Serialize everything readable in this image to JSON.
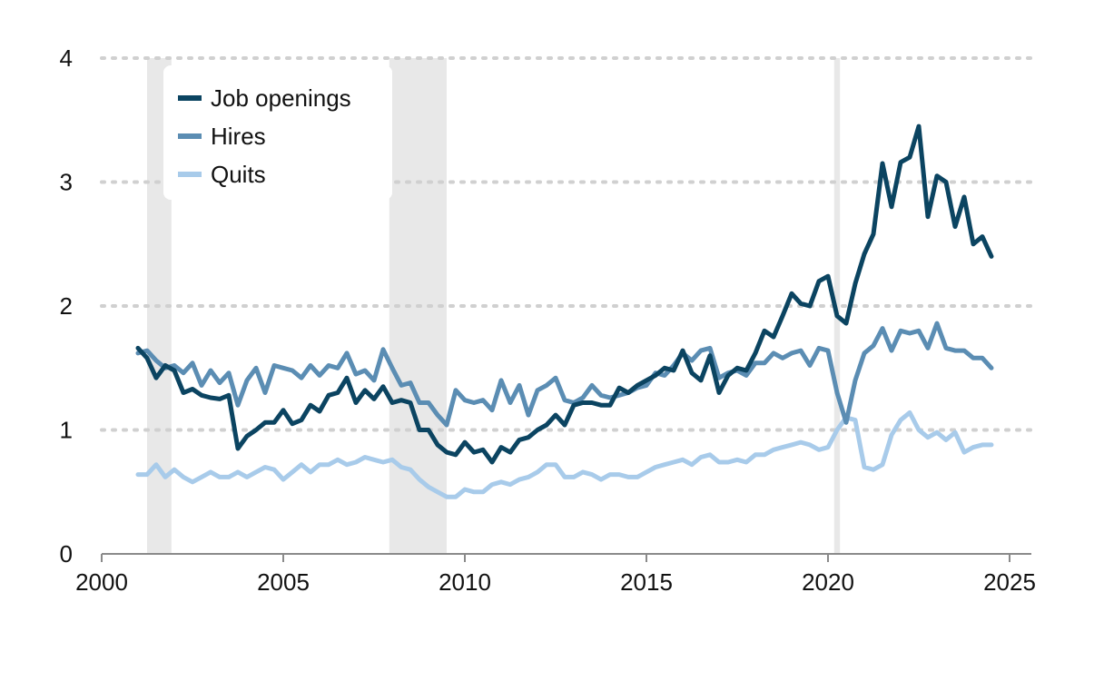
{
  "chart_data": {
    "type": "line",
    "title": "",
    "xlabel": "",
    "ylabel": "",
    "xlim": [
      2000,
      2025.6
    ],
    "ylim": [
      0,
      4
    ],
    "x_ticks": [
      "2000",
      "2005",
      "2010",
      "2015",
      "2020",
      "2025"
    ],
    "y_ticks": [
      "0",
      "1",
      "2",
      "3",
      "4"
    ],
    "grid": "horizontal dotted",
    "legend_position": "top-left",
    "recessions": [
      {
        "start": 2001.25,
        "end": 2001.92
      },
      {
        "start": 2007.92,
        "end": 2009.5
      },
      {
        "start": 2020.17,
        "end": 2020.33
      }
    ],
    "series": [
      {
        "name": "Job openings",
        "color": "#0b4461",
        "points": [
          [
            2001.0,
            1.66
          ],
          [
            2001.25,
            1.58
          ],
          [
            2001.5,
            1.42
          ],
          [
            2001.75,
            1.52
          ],
          [
            2002.0,
            1.48
          ],
          [
            2002.25,
            1.3
          ],
          [
            2002.5,
            1.33
          ],
          [
            2002.75,
            1.28
          ],
          [
            2003.0,
            1.26
          ],
          [
            2003.25,
            1.25
          ],
          [
            2003.5,
            1.28
          ],
          [
            2003.75,
            0.85
          ],
          [
            2004.0,
            0.95
          ],
          [
            2004.25,
            1.0
          ],
          [
            2004.5,
            1.06
          ],
          [
            2004.75,
            1.06
          ],
          [
            2005.0,
            1.16
          ],
          [
            2005.25,
            1.05
          ],
          [
            2005.5,
            1.08
          ],
          [
            2005.75,
            1.2
          ],
          [
            2006.0,
            1.15
          ],
          [
            2006.25,
            1.28
          ],
          [
            2006.5,
            1.3
          ],
          [
            2006.75,
            1.42
          ],
          [
            2007.0,
            1.22
          ],
          [
            2007.25,
            1.32
          ],
          [
            2007.5,
            1.25
          ],
          [
            2007.75,
            1.35
          ],
          [
            2008.0,
            1.22
          ],
          [
            2008.25,
            1.24
          ],
          [
            2008.5,
            1.22
          ],
          [
            2008.75,
            1.0
          ],
          [
            2009.0,
            1.0
          ],
          [
            2009.25,
            0.88
          ],
          [
            2009.5,
            0.82
          ],
          [
            2009.75,
            0.8
          ],
          [
            2010.0,
            0.9
          ],
          [
            2010.25,
            0.82
          ],
          [
            2010.5,
            0.84
          ],
          [
            2010.75,
            0.74
          ],
          [
            2011.0,
            0.86
          ],
          [
            2011.25,
            0.82
          ],
          [
            2011.5,
            0.92
          ],
          [
            2011.75,
            0.94
          ],
          [
            2012.0,
            1.0
          ],
          [
            2012.25,
            1.04
          ],
          [
            2012.5,
            1.12
          ],
          [
            2012.75,
            1.04
          ],
          [
            2013.0,
            1.2
          ],
          [
            2013.25,
            1.22
          ],
          [
            2013.5,
            1.22
          ],
          [
            2013.75,
            1.2
          ],
          [
            2014.0,
            1.2
          ],
          [
            2014.25,
            1.34
          ],
          [
            2014.5,
            1.3
          ],
          [
            2014.75,
            1.36
          ],
          [
            2015.0,
            1.4
          ],
          [
            2015.25,
            1.44
          ],
          [
            2015.5,
            1.5
          ],
          [
            2015.75,
            1.48
          ],
          [
            2016.0,
            1.64
          ],
          [
            2016.25,
            1.46
          ],
          [
            2016.5,
            1.4
          ],
          [
            2016.75,
            1.6
          ],
          [
            2017.0,
            1.3
          ],
          [
            2017.25,
            1.44
          ],
          [
            2017.5,
            1.5
          ],
          [
            2017.75,
            1.48
          ],
          [
            2018.0,
            1.62
          ],
          [
            2018.25,
            1.8
          ],
          [
            2018.5,
            1.75
          ],
          [
            2018.75,
            1.92
          ],
          [
            2019.0,
            2.1
          ],
          [
            2019.25,
            2.02
          ],
          [
            2019.5,
            2.0
          ],
          [
            2019.75,
            2.2
          ],
          [
            2020.0,
            2.24
          ],
          [
            2020.25,
            1.92
          ],
          [
            2020.5,
            1.86
          ],
          [
            2020.75,
            2.18
          ],
          [
            2021.0,
            2.42
          ],
          [
            2021.25,
            2.58
          ],
          [
            2021.5,
            3.15
          ],
          [
            2021.75,
            2.8
          ],
          [
            2022.0,
            3.16
          ],
          [
            2022.25,
            3.2
          ],
          [
            2022.5,
            3.45
          ],
          [
            2022.75,
            2.72
          ],
          [
            2023.0,
            3.05
          ],
          [
            2023.25,
            3.0
          ],
          [
            2023.5,
            2.64
          ],
          [
            2023.75,
            2.88
          ],
          [
            2024.0,
            2.5
          ],
          [
            2024.25,
            2.56
          ],
          [
            2024.5,
            2.4
          ]
        ]
      },
      {
        "name": "Hires",
        "color": "#5b8db3",
        "points": [
          [
            2001.0,
            1.62
          ],
          [
            2001.25,
            1.64
          ],
          [
            2001.5,
            1.56
          ],
          [
            2001.75,
            1.5
          ],
          [
            2002.0,
            1.52
          ],
          [
            2002.25,
            1.46
          ],
          [
            2002.5,
            1.54
          ],
          [
            2002.75,
            1.36
          ],
          [
            2003.0,
            1.48
          ],
          [
            2003.25,
            1.38
          ],
          [
            2003.5,
            1.46
          ],
          [
            2003.75,
            1.2
          ],
          [
            2004.0,
            1.4
          ],
          [
            2004.25,
            1.5
          ],
          [
            2004.5,
            1.3
          ],
          [
            2004.75,
            1.52
          ],
          [
            2005.0,
            1.5
          ],
          [
            2005.25,
            1.48
          ],
          [
            2005.5,
            1.42
          ],
          [
            2005.75,
            1.52
          ],
          [
            2006.0,
            1.44
          ],
          [
            2006.25,
            1.52
          ],
          [
            2006.5,
            1.5
          ],
          [
            2006.75,
            1.62
          ],
          [
            2007.0,
            1.45
          ],
          [
            2007.25,
            1.48
          ],
          [
            2007.5,
            1.4
          ],
          [
            2007.75,
            1.65
          ],
          [
            2008.0,
            1.5
          ],
          [
            2008.25,
            1.36
          ],
          [
            2008.5,
            1.38
          ],
          [
            2008.75,
            1.22
          ],
          [
            2009.0,
            1.22
          ],
          [
            2009.25,
            1.12
          ],
          [
            2009.5,
            1.04
          ],
          [
            2009.75,
            1.32
          ],
          [
            2010.0,
            1.24
          ],
          [
            2010.25,
            1.22
          ],
          [
            2010.5,
            1.24
          ],
          [
            2010.75,
            1.16
          ],
          [
            2011.0,
            1.4
          ],
          [
            2011.25,
            1.22
          ],
          [
            2011.5,
            1.36
          ],
          [
            2011.75,
            1.12
          ],
          [
            2012.0,
            1.32
          ],
          [
            2012.25,
            1.36
          ],
          [
            2012.5,
            1.42
          ],
          [
            2012.75,
            1.24
          ],
          [
            2013.0,
            1.22
          ],
          [
            2013.25,
            1.26
          ],
          [
            2013.5,
            1.36
          ],
          [
            2013.75,
            1.28
          ],
          [
            2014.0,
            1.26
          ],
          [
            2014.25,
            1.28
          ],
          [
            2014.5,
            1.3
          ],
          [
            2014.75,
            1.34
          ],
          [
            2015.0,
            1.36
          ],
          [
            2015.25,
            1.46
          ],
          [
            2015.5,
            1.44
          ],
          [
            2015.75,
            1.52
          ],
          [
            2016.0,
            1.62
          ],
          [
            2016.25,
            1.56
          ],
          [
            2016.5,
            1.64
          ],
          [
            2016.75,
            1.66
          ],
          [
            2017.0,
            1.42
          ],
          [
            2017.25,
            1.46
          ],
          [
            2017.5,
            1.48
          ],
          [
            2017.75,
            1.44
          ],
          [
            2018.0,
            1.54
          ],
          [
            2018.25,
            1.54
          ],
          [
            2018.5,
            1.62
          ],
          [
            2018.75,
            1.58
          ],
          [
            2019.0,
            1.62
          ],
          [
            2019.25,
            1.64
          ],
          [
            2019.5,
            1.52
          ],
          [
            2019.75,
            1.66
          ],
          [
            2020.0,
            1.64
          ],
          [
            2020.25,
            1.3
          ],
          [
            2020.5,
            1.06
          ],
          [
            2020.75,
            1.4
          ],
          [
            2021.0,
            1.62
          ],
          [
            2021.25,
            1.68
          ],
          [
            2021.5,
            1.82
          ],
          [
            2021.75,
            1.64
          ],
          [
            2022.0,
            1.8
          ],
          [
            2022.25,
            1.78
          ],
          [
            2022.5,
            1.8
          ],
          [
            2022.75,
            1.66
          ],
          [
            2023.0,
            1.86
          ],
          [
            2023.25,
            1.66
          ],
          [
            2023.5,
            1.64
          ],
          [
            2023.75,
            1.64
          ],
          [
            2024.0,
            1.58
          ],
          [
            2024.25,
            1.58
          ],
          [
            2024.5,
            1.5
          ]
        ]
      },
      {
        "name": "Quits",
        "color": "#a8cbea",
        "points": [
          [
            2001.0,
            0.64
          ],
          [
            2001.25,
            0.64
          ],
          [
            2001.5,
            0.72
          ],
          [
            2001.75,
            0.62
          ],
          [
            2002.0,
            0.68
          ],
          [
            2002.25,
            0.62
          ],
          [
            2002.5,
            0.58
          ],
          [
            2002.75,
            0.62
          ],
          [
            2003.0,
            0.66
          ],
          [
            2003.25,
            0.62
          ],
          [
            2003.5,
            0.62
          ],
          [
            2003.75,
            0.66
          ],
          [
            2004.0,
            0.62
          ],
          [
            2004.25,
            0.66
          ],
          [
            2004.5,
            0.7
          ],
          [
            2004.75,
            0.68
          ],
          [
            2005.0,
            0.6
          ],
          [
            2005.25,
            0.66
          ],
          [
            2005.5,
            0.72
          ],
          [
            2005.75,
            0.66
          ],
          [
            2006.0,
            0.72
          ],
          [
            2006.25,
            0.72
          ],
          [
            2006.5,
            0.76
          ],
          [
            2006.75,
            0.72
          ],
          [
            2007.0,
            0.74
          ],
          [
            2007.25,
            0.78
          ],
          [
            2007.5,
            0.76
          ],
          [
            2007.75,
            0.74
          ],
          [
            2008.0,
            0.76
          ],
          [
            2008.25,
            0.7
          ],
          [
            2008.5,
            0.68
          ],
          [
            2008.75,
            0.6
          ],
          [
            2009.0,
            0.54
          ],
          [
            2009.25,
            0.5
          ],
          [
            2009.5,
            0.46
          ],
          [
            2009.75,
            0.46
          ],
          [
            2010.0,
            0.52
          ],
          [
            2010.25,
            0.5
          ],
          [
            2010.5,
            0.5
          ],
          [
            2010.75,
            0.56
          ],
          [
            2011.0,
            0.58
          ],
          [
            2011.25,
            0.56
          ],
          [
            2011.5,
            0.6
          ],
          [
            2011.75,
            0.62
          ],
          [
            2012.0,
            0.66
          ],
          [
            2012.25,
            0.72
          ],
          [
            2012.5,
            0.72
          ],
          [
            2012.75,
            0.62
          ],
          [
            2013.0,
            0.62
          ],
          [
            2013.25,
            0.66
          ],
          [
            2013.5,
            0.64
          ],
          [
            2013.75,
            0.6
          ],
          [
            2014.0,
            0.64
          ],
          [
            2014.25,
            0.64
          ],
          [
            2014.5,
            0.62
          ],
          [
            2014.75,
            0.62
          ],
          [
            2015.0,
            0.66
          ],
          [
            2015.25,
            0.7
          ],
          [
            2015.5,
            0.72
          ],
          [
            2015.75,
            0.74
          ],
          [
            2016.0,
            0.76
          ],
          [
            2016.25,
            0.72
          ],
          [
            2016.5,
            0.78
          ],
          [
            2016.75,
            0.8
          ],
          [
            2017.0,
            0.74
          ],
          [
            2017.25,
            0.74
          ],
          [
            2017.5,
            0.76
          ],
          [
            2017.75,
            0.74
          ],
          [
            2018.0,
            0.8
          ],
          [
            2018.25,
            0.8
          ],
          [
            2018.5,
            0.84
          ],
          [
            2018.75,
            0.86
          ],
          [
            2019.0,
            0.88
          ],
          [
            2019.25,
            0.9
          ],
          [
            2019.5,
            0.88
          ],
          [
            2019.75,
            0.84
          ],
          [
            2020.0,
            0.86
          ],
          [
            2020.25,
            1.0
          ],
          [
            2020.5,
            1.1
          ],
          [
            2020.75,
            1.08
          ],
          [
            2021.0,
            0.7
          ],
          [
            2021.25,
            0.68
          ],
          [
            2021.5,
            0.72
          ],
          [
            2021.75,
            0.96
          ],
          [
            2022.0,
            1.08
          ],
          [
            2022.25,
            1.14
          ],
          [
            2022.5,
            1.0
          ],
          [
            2022.75,
            0.94
          ],
          [
            2023.0,
            0.98
          ],
          [
            2023.25,
            0.92
          ],
          [
            2023.5,
            0.98
          ],
          [
            2023.75,
            0.82
          ],
          [
            2024.0,
            0.86
          ],
          [
            2024.25,
            0.88
          ],
          [
            2024.5,
            0.88
          ]
        ]
      }
    ]
  }
}
